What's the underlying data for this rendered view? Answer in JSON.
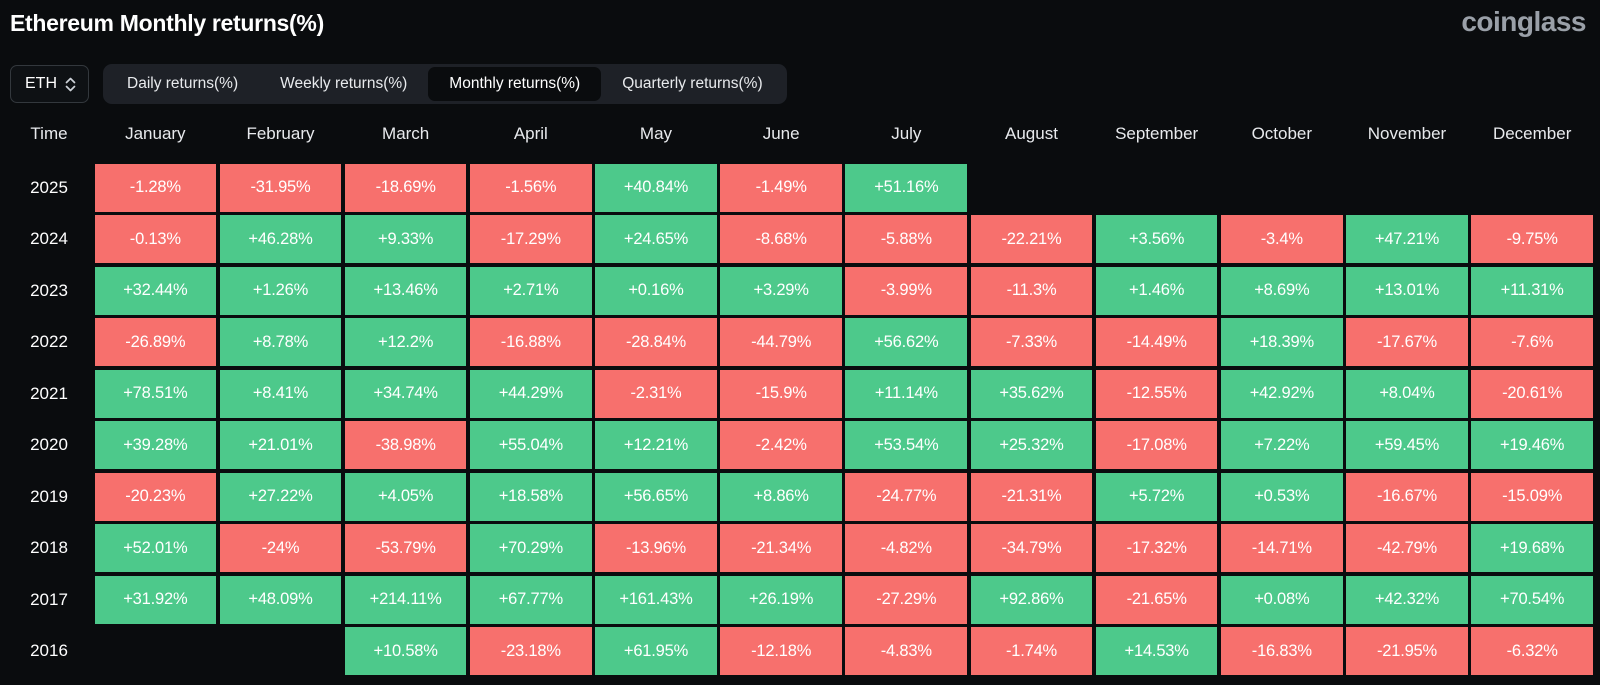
{
  "header": {
    "title": "Ethereum Monthly returns(%)",
    "logo": "coinglass"
  },
  "controls": {
    "symbol_select": {
      "value": "ETH"
    },
    "tabs": [
      {
        "label": "Daily returns(%)",
        "active": false
      },
      {
        "label": "Weekly returns(%)",
        "active": false
      },
      {
        "label": "Monthly returns(%)",
        "active": true
      },
      {
        "label": "Quarterly returns(%)",
        "active": false
      }
    ]
  },
  "chart_data": {
    "type": "heatmap",
    "title": "Ethereum Monthly returns(%)",
    "corner_label": "Time",
    "columns": [
      "January",
      "February",
      "March",
      "April",
      "May",
      "June",
      "July",
      "August",
      "September",
      "October",
      "November",
      "December"
    ],
    "rows": [
      {
        "year": "2025",
        "values": [
          "-1.28%",
          "-31.95%",
          "-18.69%",
          "-1.56%",
          "+40.84%",
          "-1.49%",
          "+51.16%",
          null,
          null,
          null,
          null,
          null
        ]
      },
      {
        "year": "2024",
        "values": [
          "-0.13%",
          "+46.28%",
          "+9.33%",
          "-17.29%",
          "+24.65%",
          "-8.68%",
          "-5.88%",
          "-22.21%",
          "+3.56%",
          "-3.4%",
          "+47.21%",
          "-9.75%"
        ]
      },
      {
        "year": "2023",
        "values": [
          "+32.44%",
          "+1.26%",
          "+13.46%",
          "+2.71%",
          "+0.16%",
          "+3.29%",
          "-3.99%",
          "-11.3%",
          "+1.46%",
          "+8.69%",
          "+13.01%",
          "+11.31%"
        ]
      },
      {
        "year": "2022",
        "values": [
          "-26.89%",
          "+8.78%",
          "+12.2%",
          "-16.88%",
          "-28.84%",
          "-44.79%",
          "+56.62%",
          "-7.33%",
          "-14.49%",
          "+18.39%",
          "-17.67%",
          "-7.6%"
        ]
      },
      {
        "year": "2021",
        "values": [
          "+78.51%",
          "+8.41%",
          "+34.74%",
          "+44.29%",
          "-2.31%",
          "-15.9%",
          "+11.14%",
          "+35.62%",
          "-12.55%",
          "+42.92%",
          "+8.04%",
          "-20.61%"
        ]
      },
      {
        "year": "2020",
        "values": [
          "+39.28%",
          "+21.01%",
          "-38.98%",
          "+55.04%",
          "+12.21%",
          "-2.42%",
          "+53.54%",
          "+25.32%",
          "-17.08%",
          "+7.22%",
          "+59.45%",
          "+19.46%"
        ]
      },
      {
        "year": "2019",
        "values": [
          "-20.23%",
          "+27.22%",
          "+4.05%",
          "+18.58%",
          "+56.65%",
          "+8.86%",
          "-24.77%",
          "-21.31%",
          "+5.72%",
          "+0.53%",
          "-16.67%",
          "-15.09%"
        ]
      },
      {
        "year": "2018",
        "values": [
          "+52.01%",
          "-24%",
          "-53.79%",
          "+70.29%",
          "-13.96%",
          "-21.34%",
          "-4.82%",
          "-34.79%",
          "-17.32%",
          "-14.71%",
          "-42.79%",
          "+19.68%"
        ]
      },
      {
        "year": "2017",
        "values": [
          "+31.92%",
          "+48.09%",
          "+214.11%",
          "+67.77%",
          "+161.43%",
          "+26.19%",
          "-27.29%",
          "+92.86%",
          "-21.65%",
          "+0.08%",
          "+42.32%",
          "+70.54%"
        ]
      },
      {
        "year": "2016",
        "values": [
          null,
          null,
          "+10.58%",
          "-23.18%",
          "+61.95%",
          "-12.18%",
          "-4.83%",
          "-1.74%",
          "+14.53%",
          "-16.83%",
          "-21.95%",
          "-6.32%"
        ]
      }
    ],
    "colors": {
      "positive": "#4dc98b",
      "negative": "#f7706d",
      "background": "#0a0c0e"
    },
    "legend": "green = positive monthly return, red = negative monthly return"
  }
}
